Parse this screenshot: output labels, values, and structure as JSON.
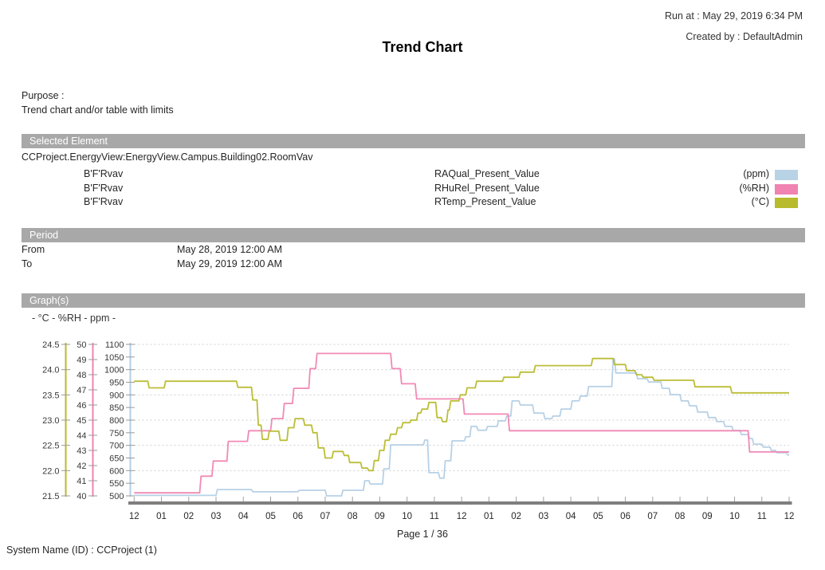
{
  "header": {
    "run_at": "Run at : May 29, 2019 6:34 PM",
    "created_by": "Created by : DefaultAdmin",
    "title": "Trend Chart"
  },
  "purpose": {
    "label": "Purpose :",
    "text": "Trend chart and/or table with limits"
  },
  "selected_element": {
    "section_title": "Selected Element",
    "path": "CCProject.EnergyView:EnergyView.Campus.Building02.RoomVav",
    "rows": [
      {
        "element": "B'F'Rvav",
        "property": "RAQual_Present_Value",
        "unit": "(ppm)",
        "color": "#b9d3e6"
      },
      {
        "element": "B'F'Rvav",
        "property": "RHuRel_Present_Value",
        "unit": "(%RH)",
        "color": "#f083b1"
      },
      {
        "element": "B'F'Rvav",
        "property": "RTemp_Present_Value",
        "unit": "(°C)",
        "color": "#b7bb2c"
      }
    ]
  },
  "period": {
    "section_title": "Period",
    "rows": [
      {
        "label": "From",
        "value": "May 28, 2019 12:00 AM"
      },
      {
        "label": "To",
        "value": "May 29, 2019 12:00 AM"
      }
    ]
  },
  "graphs": {
    "section_title": "Graph(s)",
    "axis_caption": "- °C - %RH - ppm -"
  },
  "footer": {
    "page": "Page 1 / 36",
    "system_name": "System Name (ID) : CCProject (1)"
  },
  "chart_data": {
    "type": "line",
    "step": true,
    "grid": "horizontal-dashed",
    "grid_color": "#cfcfcf",
    "axis_bar_color": "#7f7f7f",
    "tick_color": "#9a9a9a",
    "label_color": "#3a3a3a",
    "x_axis": {
      "range_hours": [
        0,
        24
      ],
      "tick_every_hours": 1,
      "labels": [
        "12",
        "01",
        "02",
        "03",
        "04",
        "05",
        "06",
        "07",
        "08",
        "09",
        "10",
        "11",
        "12",
        "01",
        "02",
        "03",
        "04",
        "05",
        "06",
        "07",
        "08",
        "09",
        "10",
        "11",
        "12"
      ]
    },
    "y_axes": [
      {
        "name": "°C",
        "color": "#b7bb2c",
        "min": 21.5,
        "max": 24.5,
        "tick_step": 0.5,
        "decimals": 1
      },
      {
        "name": "%RH",
        "color": "#f083b1",
        "min": 40,
        "max": 50,
        "tick_step": 1,
        "decimals": 0
      },
      {
        "name": "ppm",
        "color": "#b3cfe5",
        "min": 500,
        "max": 1100,
        "tick_step": 50,
        "decimals": 0
      }
    ],
    "series": [
      {
        "name": "RAQual_Present_Value",
        "unit": "ppm",
        "axis": 2,
        "color": "#b3cfe5",
        "points": [
          [
            0,
            502
          ],
          [
            3.0,
            502
          ],
          [
            3.05,
            525
          ],
          [
            4.3,
            525
          ],
          [
            4.35,
            516
          ],
          [
            6.0,
            516
          ],
          [
            6.05,
            522
          ],
          [
            7.0,
            522
          ],
          [
            7.05,
            500
          ],
          [
            7.6,
            500
          ],
          [
            7.65,
            522
          ],
          [
            8.4,
            522
          ],
          [
            8.45,
            560
          ],
          [
            8.6,
            560
          ],
          [
            8.65,
            547
          ],
          [
            9.1,
            547
          ],
          [
            9.15,
            607
          ],
          [
            9.35,
            607
          ],
          [
            9.4,
            702
          ],
          [
            10.6,
            702
          ],
          [
            10.65,
            721
          ],
          [
            10.75,
            721
          ],
          [
            10.8,
            592
          ],
          [
            11.15,
            592
          ],
          [
            11.2,
            570
          ],
          [
            11.35,
            570
          ],
          [
            11.4,
            639
          ],
          [
            11.6,
            639
          ],
          [
            11.65,
            718
          ],
          [
            12.1,
            718
          ],
          [
            12.15,
            734
          ],
          [
            12.3,
            734
          ],
          [
            12.35,
            775
          ],
          [
            12.55,
            775
          ],
          [
            12.6,
            760
          ],
          [
            12.9,
            760
          ],
          [
            12.95,
            775
          ],
          [
            13.3,
            775
          ],
          [
            13.35,
            797
          ],
          [
            13.6,
            797
          ],
          [
            13.65,
            816
          ],
          [
            13.8,
            816
          ],
          [
            13.85,
            876
          ],
          [
            14.1,
            876
          ],
          [
            14.15,
            860
          ],
          [
            14.6,
            860
          ],
          [
            14.65,
            828
          ],
          [
            15.0,
            828
          ],
          [
            15.05,
            806
          ],
          [
            15.3,
            806
          ],
          [
            15.35,
            816
          ],
          [
            15.6,
            816
          ],
          [
            15.65,
            844
          ],
          [
            16.0,
            844
          ],
          [
            16.05,
            876
          ],
          [
            16.3,
            876
          ],
          [
            16.35,
            895
          ],
          [
            16.6,
            895
          ],
          [
            16.65,
            933
          ],
          [
            17.5,
            933
          ],
          [
            17.55,
            1043
          ],
          [
            17.6,
            1043
          ],
          [
            17.65,
            987
          ],
          [
            18.4,
            987
          ],
          [
            18.45,
            964
          ],
          [
            18.8,
            964
          ],
          [
            18.85,
            951
          ],
          [
            19.3,
            951
          ],
          [
            19.35,
            926
          ],
          [
            19.6,
            926
          ],
          [
            19.65,
            901
          ],
          [
            20.0,
            901
          ],
          [
            20.05,
            876
          ],
          [
            20.3,
            876
          ],
          [
            20.35,
            857
          ],
          [
            20.6,
            857
          ],
          [
            20.65,
            832
          ],
          [
            21.0,
            832
          ],
          [
            21.05,
            810
          ],
          [
            21.3,
            810
          ],
          [
            21.35,
            794
          ],
          [
            21.6,
            794
          ],
          [
            21.65,
            775
          ],
          [
            21.9,
            775
          ],
          [
            21.95,
            759
          ],
          [
            22.2,
            759
          ],
          [
            22.25,
            743
          ],
          [
            22.5,
            743
          ],
          [
            22.55,
            727
          ],
          [
            22.65,
            727
          ],
          [
            22.7,
            705
          ],
          [
            23.0,
            705
          ],
          [
            23.05,
            693
          ],
          [
            23.3,
            693
          ],
          [
            23.35,
            680
          ],
          [
            23.5,
            680
          ],
          [
            23.55,
            671
          ],
          [
            23.9,
            671
          ],
          [
            23.95,
            662
          ],
          [
            24,
            662
          ]
        ]
      },
      {
        "name": "RHuRel_Present_Value",
        "unit": "%RH",
        "axis": 1,
        "color": "#f083b1",
        "points": [
          [
            0,
            40.2
          ],
          [
            2.4,
            40.2
          ],
          [
            2.45,
            41.3
          ],
          [
            2.85,
            41.3
          ],
          [
            2.9,
            42.3
          ],
          [
            3.4,
            42.3
          ],
          [
            3.45,
            43.6
          ],
          [
            4.15,
            43.6
          ],
          [
            4.2,
            44.3
          ],
          [
            5.0,
            44.3
          ],
          [
            5.05,
            45.1
          ],
          [
            5.45,
            45.1
          ],
          [
            5.5,
            46.1
          ],
          [
            5.8,
            46.1
          ],
          [
            5.85,
            47.1
          ],
          [
            6.4,
            47.1
          ],
          [
            6.45,
            48.4
          ],
          [
            6.65,
            48.4
          ],
          [
            6.7,
            49.4
          ],
          [
            9.4,
            49.4
          ],
          [
            9.45,
            48.4
          ],
          [
            9.75,
            48.4
          ],
          [
            9.8,
            47.4
          ],
          [
            10.3,
            47.4
          ],
          [
            10.35,
            46.4
          ],
          [
            12.05,
            46.4
          ],
          [
            12.1,
            45.4
          ],
          [
            13.7,
            45.4
          ],
          [
            13.75,
            44.3
          ],
          [
            22.5,
            44.3
          ],
          [
            22.55,
            42.9
          ],
          [
            24,
            42.9
          ]
        ]
      },
      {
        "name": "RTemp_Present_Value",
        "unit": "°C",
        "axis": 0,
        "color": "#b7bb2c",
        "points": [
          [
            0,
            23.77
          ],
          [
            0.5,
            23.77
          ],
          [
            0.55,
            23.64
          ],
          [
            1.1,
            23.64
          ],
          [
            1.15,
            23.77
          ],
          [
            3.75,
            23.77
          ],
          [
            3.8,
            23.65
          ],
          [
            4.3,
            23.65
          ],
          [
            4.35,
            23.4
          ],
          [
            4.5,
            23.4
          ],
          [
            4.55,
            22.9
          ],
          [
            4.65,
            22.9
          ],
          [
            4.7,
            22.62
          ],
          [
            4.9,
            22.62
          ],
          [
            4.95,
            22.78
          ],
          [
            5.3,
            22.78
          ],
          [
            5.35,
            22.6
          ],
          [
            5.6,
            22.6
          ],
          [
            5.65,
            22.85
          ],
          [
            5.85,
            22.85
          ],
          [
            5.9,
            23.03
          ],
          [
            6.2,
            23.03
          ],
          [
            6.25,
            22.9
          ],
          [
            6.5,
            22.9
          ],
          [
            6.55,
            22.75
          ],
          [
            6.7,
            22.75
          ],
          [
            6.75,
            22.45
          ],
          [
            6.95,
            22.45
          ],
          [
            7.0,
            22.25
          ],
          [
            7.25,
            22.25
          ],
          [
            7.3,
            22.38
          ],
          [
            7.65,
            22.38
          ],
          [
            7.7,
            22.3
          ],
          [
            7.85,
            22.3
          ],
          [
            7.9,
            22.16
          ],
          [
            8.3,
            22.16
          ],
          [
            8.35,
            22.05
          ],
          [
            8.55,
            22.05
          ],
          [
            8.6,
            22.0
          ],
          [
            8.75,
            22.0
          ],
          [
            8.8,
            22.2
          ],
          [
            8.95,
            22.2
          ],
          [
            9.0,
            22.4
          ],
          [
            9.15,
            22.4
          ],
          [
            9.2,
            22.6
          ],
          [
            9.35,
            22.6
          ],
          [
            9.4,
            22.72
          ],
          [
            9.6,
            22.72
          ],
          [
            9.65,
            22.85
          ],
          [
            9.8,
            22.85
          ],
          [
            9.85,
            22.95
          ],
          [
            10.1,
            22.95
          ],
          [
            10.15,
            23.0
          ],
          [
            10.35,
            23.0
          ],
          [
            10.4,
            23.14
          ],
          [
            10.5,
            23.14
          ],
          [
            10.55,
            23.22
          ],
          [
            10.75,
            23.22
          ],
          [
            10.8,
            23.35
          ],
          [
            11.05,
            23.35
          ],
          [
            11.1,
            23.05
          ],
          [
            11.25,
            23.05
          ],
          [
            11.3,
            22.97
          ],
          [
            11.45,
            22.97
          ],
          [
            11.5,
            23.2
          ],
          [
            11.55,
            23.2
          ],
          [
            11.6,
            23.38
          ],
          [
            11.9,
            23.38
          ],
          [
            11.95,
            23.5
          ],
          [
            12.15,
            23.5
          ],
          [
            12.2,
            23.64
          ],
          [
            12.5,
            23.64
          ],
          [
            12.55,
            23.77
          ],
          [
            13.5,
            23.77
          ],
          [
            13.55,
            23.85
          ],
          [
            14.1,
            23.85
          ],
          [
            14.15,
            23.95
          ],
          [
            14.65,
            23.95
          ],
          [
            14.7,
            24.08
          ],
          [
            16.75,
            24.08
          ],
          [
            16.8,
            24.22
          ],
          [
            17.55,
            24.22
          ],
          [
            17.6,
            24.1
          ],
          [
            18.0,
            24.1
          ],
          [
            18.05,
            23.98
          ],
          [
            18.35,
            23.98
          ],
          [
            18.4,
            23.9
          ],
          [
            18.6,
            23.9
          ],
          [
            18.65,
            23.85
          ],
          [
            19.0,
            23.85
          ],
          [
            19.05,
            23.79
          ],
          [
            20.5,
            23.79
          ],
          [
            20.55,
            23.66
          ],
          [
            21.85,
            23.66
          ],
          [
            21.9,
            23.54
          ],
          [
            24,
            23.54
          ]
        ]
      }
    ]
  }
}
